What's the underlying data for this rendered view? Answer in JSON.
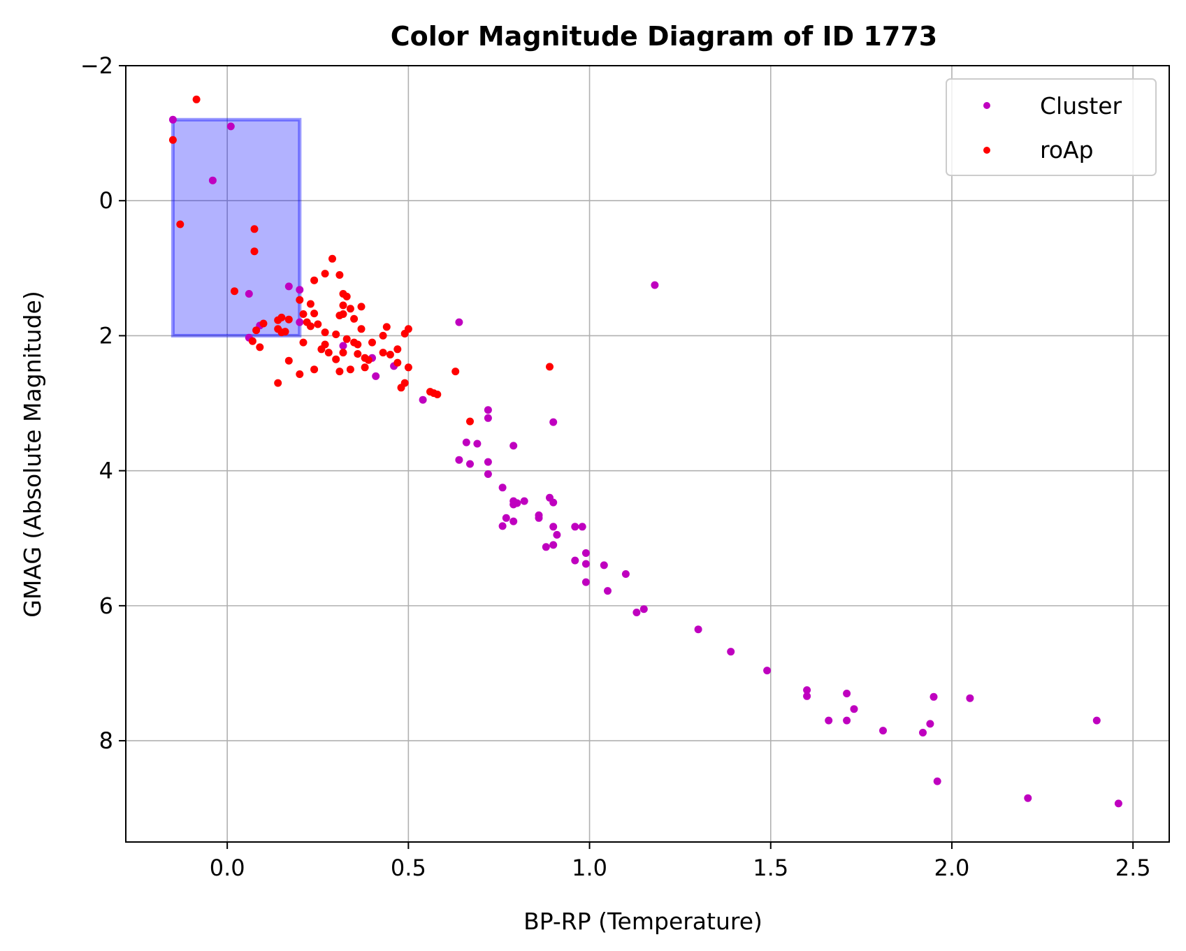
{
  "chart_data": {
    "type": "scatter",
    "title": "Color Magnitude Diagram of ID 1773",
    "xlabel": "BP-RP (Temperature)",
    "ylabel": "GMAG (Absolute Magnitude)",
    "xlim": [
      -0.28,
      2.6
    ],
    "ylim": [
      9.5,
      -2
    ],
    "y_inverted": true,
    "grid": true,
    "legend_position": "top-right",
    "xticks": [
      0.0,
      0.5,
      1.0,
      1.5,
      2.0,
      2.5
    ],
    "xtick_labels": [
      "0.0",
      "0.5",
      "1.0",
      "1.5",
      "2.0",
      "2.5"
    ],
    "yticks": [
      -2,
      0,
      2,
      4,
      6,
      8
    ],
    "ytick_labels": [
      "−2",
      "0",
      "2",
      "4",
      "6",
      "8"
    ],
    "highlight_region": {
      "x": [
        -0.15,
        0.2
      ],
      "y": [
        -1.2,
        2.0
      ],
      "color": "#0000ff",
      "opacity": 0.3
    },
    "series": [
      {
        "name": "Cluster",
        "color": "#bf00bf",
        "points": [
          [
            -0.15,
            -1.2
          ],
          [
            0.01,
            -1.1
          ],
          [
            -0.04,
            -0.3
          ],
          [
            0.06,
            1.38
          ],
          [
            0.2,
            1.32
          ],
          [
            0.17,
            1.27
          ],
          [
            0.09,
            1.85
          ],
          [
            0.2,
            1.8
          ],
          [
            0.06,
            2.03
          ],
          [
            0.32,
            2.15
          ],
          [
            0.4,
            2.33
          ],
          [
            0.46,
            2.45
          ],
          [
            0.41,
            2.6
          ],
          [
            0.54,
            2.95
          ],
          [
            0.64,
            1.8
          ],
          [
            0.72,
            3.1
          ],
          [
            0.72,
            3.22
          ],
          [
            0.9,
            3.28
          ],
          [
            0.66,
            3.58
          ],
          [
            0.69,
            3.6
          ],
          [
            0.79,
            3.63
          ],
          [
            0.64,
            3.84
          ],
          [
            0.67,
            3.9
          ],
          [
            0.72,
            3.87
          ],
          [
            0.72,
            4.05
          ],
          [
            0.76,
            4.25
          ],
          [
            0.79,
            4.45
          ],
          [
            0.79,
            4.5
          ],
          [
            0.8,
            4.48
          ],
          [
            0.82,
            4.45
          ],
          [
            0.89,
            4.4
          ],
          [
            0.9,
            4.47
          ],
          [
            0.77,
            4.7
          ],
          [
            0.79,
            4.75
          ],
          [
            0.76,
            4.82
          ],
          [
            0.86,
            4.66
          ],
          [
            0.86,
            4.7
          ],
          [
            0.9,
            4.83
          ],
          [
            0.91,
            4.95
          ],
          [
            0.96,
            4.83
          ],
          [
            0.98,
            4.83
          ],
          [
            0.88,
            5.13
          ],
          [
            0.9,
            5.1
          ],
          [
            0.99,
            5.22
          ],
          [
            0.96,
            5.33
          ],
          [
            0.99,
            5.38
          ],
          [
            1.04,
            5.4
          ],
          [
            1.1,
            5.53
          ],
          [
            0.99,
            5.65
          ],
          [
            1.05,
            5.78
          ],
          [
            1.15,
            6.05
          ],
          [
            1.13,
            6.1
          ],
          [
            1.18,
            1.25
          ],
          [
            1.3,
            6.35
          ],
          [
            1.39,
            6.68
          ],
          [
            1.49,
            6.96
          ],
          [
            1.6,
            7.25
          ],
          [
            1.6,
            7.34
          ],
          [
            1.71,
            7.3
          ],
          [
            1.73,
            7.53
          ],
          [
            1.66,
            7.7
          ],
          [
            1.71,
            7.7
          ],
          [
            1.81,
            7.85
          ],
          [
            1.92,
            7.88
          ],
          [
            1.94,
            7.75
          ],
          [
            1.95,
            7.35
          ],
          [
            2.05,
            7.37
          ],
          [
            1.96,
            8.6
          ],
          [
            2.21,
            8.85
          ],
          [
            2.4,
            7.7
          ],
          [
            2.46,
            8.93
          ]
        ]
      },
      {
        "name": "roAp",
        "color": "#ff0000",
        "points": [
          [
            -0.085,
            -1.5
          ],
          [
            -0.15,
            -0.9
          ],
          [
            -0.13,
            0.35
          ],
          [
            0.075,
            0.42
          ],
          [
            0.075,
            0.75
          ],
          [
            0.02,
            1.34
          ],
          [
            0.29,
            0.86
          ],
          [
            0.27,
            1.08
          ],
          [
            0.31,
            1.1
          ],
          [
            0.24,
            1.18
          ],
          [
            0.32,
            1.38
          ],
          [
            0.33,
            1.42
          ],
          [
            0.2,
            1.47
          ],
          [
            0.23,
            1.53
          ],
          [
            0.32,
            1.55
          ],
          [
            0.34,
            1.6
          ],
          [
            0.37,
            1.57
          ],
          [
            0.21,
            1.68
          ],
          [
            0.24,
            1.67
          ],
          [
            0.31,
            1.7
          ],
          [
            0.32,
            1.68
          ],
          [
            0.35,
            1.75
          ],
          [
            0.15,
            1.73
          ],
          [
            0.14,
            1.77
          ],
          [
            0.17,
            1.76
          ],
          [
            0.22,
            1.8
          ],
          [
            0.25,
            1.83
          ],
          [
            0.23,
            1.86
          ],
          [
            0.1,
            1.82
          ],
          [
            0.08,
            1.92
          ],
          [
            0.14,
            1.9
          ],
          [
            0.15,
            1.95
          ],
          [
            0.16,
            1.94
          ],
          [
            0.27,
            1.95
          ],
          [
            0.3,
            1.98
          ],
          [
            0.37,
            1.9
          ],
          [
            0.44,
            1.87
          ],
          [
            0.5,
            1.9
          ],
          [
            0.49,
            1.97
          ],
          [
            0.43,
            2.0
          ],
          [
            0.07,
            2.08
          ],
          [
            0.09,
            2.17
          ],
          [
            0.21,
            2.1
          ],
          [
            0.27,
            2.13
          ],
          [
            0.33,
            2.05
          ],
          [
            0.35,
            2.1
          ],
          [
            0.4,
            2.1
          ],
          [
            0.36,
            2.13
          ],
          [
            0.47,
            2.2
          ],
          [
            0.26,
            2.2
          ],
          [
            0.28,
            2.25
          ],
          [
            0.32,
            2.25
          ],
          [
            0.36,
            2.27
          ],
          [
            0.43,
            2.25
          ],
          [
            0.45,
            2.28
          ],
          [
            0.3,
            2.35
          ],
          [
            0.38,
            2.33
          ],
          [
            0.39,
            2.36
          ],
          [
            0.17,
            2.37
          ],
          [
            0.47,
            2.4
          ],
          [
            0.38,
            2.47
          ],
          [
            0.5,
            2.47
          ],
          [
            0.24,
            2.5
          ],
          [
            0.31,
            2.53
          ],
          [
            0.34,
            2.5
          ],
          [
            0.2,
            2.57
          ],
          [
            0.63,
            2.53
          ],
          [
            0.14,
            2.7
          ],
          [
            0.49,
            2.7
          ],
          [
            0.48,
            2.77
          ],
          [
            0.56,
            2.83
          ],
          [
            0.57,
            2.85
          ],
          [
            0.58,
            2.87
          ],
          [
            0.67,
            3.27
          ],
          [
            0.89,
            2.46
          ]
        ]
      }
    ]
  }
}
